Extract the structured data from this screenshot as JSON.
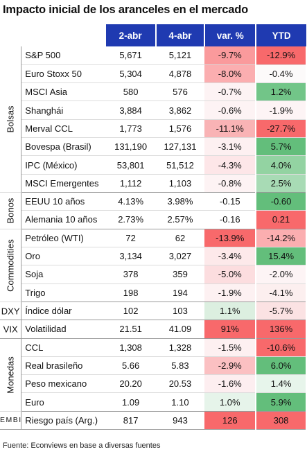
{
  "title": "Impacto inicial de los aranceles en el mercado",
  "headers": [
    "2-abr",
    "4-abr",
    "var. %",
    "YTD"
  ],
  "footer": "Fuente: Econviews en base a diversas fuentes",
  "colors": {
    "header_bg": "#1f3ab1",
    "neg_strong": "#f8696b",
    "neg_light": "#fde0e2",
    "pos_strong": "#63be7b",
    "pos_light": "#d2ecd8"
  },
  "groups": [
    {
      "label": "Bolsas",
      "orientation": "vertical",
      "rows": [
        {
          "name": "S&P 500",
          "v1": "5,671",
          "v2": "5,121",
          "pct": "-9.7%",
          "ytd": "-12.9%",
          "pct_color": "#fa9a9c",
          "ytd_color": "#f8696b"
        },
        {
          "name": "Euro Stoxx 50",
          "v1": "5,304",
          "v2": "4,878",
          "pct": "-8.0%",
          "ytd": "-0.4%",
          "pct_color": "#fbaeb0",
          "ytd_color": "#fcfafa"
        },
        {
          "name": "MSCI Asia",
          "v1": "580",
          "v2": "576",
          "pct": "-0.7%",
          "ytd": "1.2%",
          "pct_color": "#fdf3f4",
          "ytd_color": "#72c588"
        },
        {
          "name": "Shanghái",
          "v1": "3,884",
          "v2": "3,862",
          "pct": "-0.6%",
          "ytd": "-1.9%",
          "pct_color": "#fdf3f4",
          "ytd_color": "#fdf4f5"
        },
        {
          "name": "Merval CCL",
          "v1": "1,773",
          "v2": "1,576",
          "pct": "-11.1%",
          "ytd": "-27.7%",
          "pct_color": "#f9b3b5",
          "ytd_color": "#f8696b"
        },
        {
          "name": "Bovespa (Brasil)",
          "v1": "131,190",
          "v2": "127,131",
          "pct": "-3.1%",
          "ytd": "5.7%",
          "pct_color": "#fdf0f1",
          "ytd_color": "#63be7b"
        },
        {
          "name": "IPC (México)",
          "v1": "53,801",
          "v2": "51,512",
          "pct": "-4.3%",
          "ytd": "4.0%",
          "pct_color": "#fde6e8",
          "ytd_color": "#93d3a2"
        },
        {
          "name": "MSCI Emergentes",
          "v1": "1,112",
          "v2": "1,103",
          "pct": "-0.8%",
          "ytd": "2.5%",
          "pct_color": "#fdf3f4",
          "ytd_color": "#a8dbb5"
        }
      ]
    },
    {
      "label": "Bonos",
      "orientation": "vertical",
      "rows": [
        {
          "name": "EEUU 10 años",
          "v1": "4.13%",
          "v2": "3.98%",
          "pct": "-0.15",
          "ytd": "-0.60",
          "pct_color": "#ffffff",
          "ytd_color": "#63be7b"
        },
        {
          "name": "Alemania 10 años",
          "v1": "2.73%",
          "v2": "2.57%",
          "pct": "-0.16",
          "ytd": "0.21",
          "pct_color": "#ffffff",
          "ytd_color": "#f8696b"
        }
      ]
    },
    {
      "label": "Commodities",
      "orientation": "vertical",
      "rows": [
        {
          "name": "Petróleo (WTI)",
          "v1": "72",
          "v2": "62",
          "pct": "-13.9%",
          "ytd": "-14.2%",
          "pct_color": "#f8696b",
          "ytd_color": "#fbaeb0"
        },
        {
          "name": "Oro",
          "v1": "3,134",
          "v2": "3,027",
          "pct": "-3.4%",
          "ytd": "15.4%",
          "pct_color": "#fde9ea",
          "ytd_color": "#63be7b"
        },
        {
          "name": "Soja",
          "v1": "378",
          "v2": "359",
          "pct": "-5.0%",
          "ytd": "-2.0%",
          "pct_color": "#fcdddf",
          "ytd_color": "#fdf4f5"
        },
        {
          "name": "Trigo",
          "v1": "198",
          "v2": "194",
          "pct": "-1.9%",
          "ytd": "-4.1%",
          "pct_color": "#fdf1f2",
          "ytd_color": "#fcefef"
        }
      ]
    },
    {
      "label": "DXY",
      "orientation": "horizontal",
      "rows": [
        {
          "name": "Índice dólar",
          "v1": "102",
          "v2": "103",
          "pct": "1.1%",
          "ytd": "-5.7%",
          "pct_color": "#dcefe0",
          "ytd_color": "#fbe2e3"
        }
      ]
    },
    {
      "label": "VIX",
      "orientation": "horizontal",
      "rows": [
        {
          "name": "Volatilidad",
          "v1": "21.51",
          "v2": "41.09",
          "pct": "91%",
          "ytd": "136%",
          "pct_color": "#f8696b",
          "ytd_color": "#f8696b"
        }
      ]
    },
    {
      "label": "Monedas",
      "orientation": "vertical",
      "rows": [
        {
          "name": "CCL",
          "v1": "1,308",
          "v2": "1,328",
          "pct": "-1.5%",
          "ytd": "-10.6%",
          "pct_color": "#fdf0f1",
          "ytd_color": "#f8696b"
        },
        {
          "name": "Real brasileño",
          "v1": "5.66",
          "v2": "5.83",
          "pct": "-2.9%",
          "ytd": "6.0%",
          "pct_color": "#fbc0c2",
          "ytd_color": "#63be7b"
        },
        {
          "name": "Peso mexicano",
          "v1": "20.20",
          "v2": "20.53",
          "pct": "-1.6%",
          "ytd": "1.4%",
          "pct_color": "#fdeef0",
          "ytd_color": "#e7f5eb"
        },
        {
          "name": "Euro",
          "v1": "1.09",
          "v2": "1.10",
          "pct": "1.0%",
          "ytd": "5.9%",
          "pct_color": "#e6f4ea",
          "ytd_color": "#63be7b"
        }
      ]
    },
    {
      "label": "EMBI",
      "orientation": "horizontal-small",
      "rows": [
        {
          "name": "Riesgo país (Arg.)",
          "v1": "817",
          "v2": "943",
          "pct": "126",
          "ytd": "308",
          "pct_color": "#f8696b",
          "ytd_color": "#f8696b"
        }
      ]
    }
  ]
}
